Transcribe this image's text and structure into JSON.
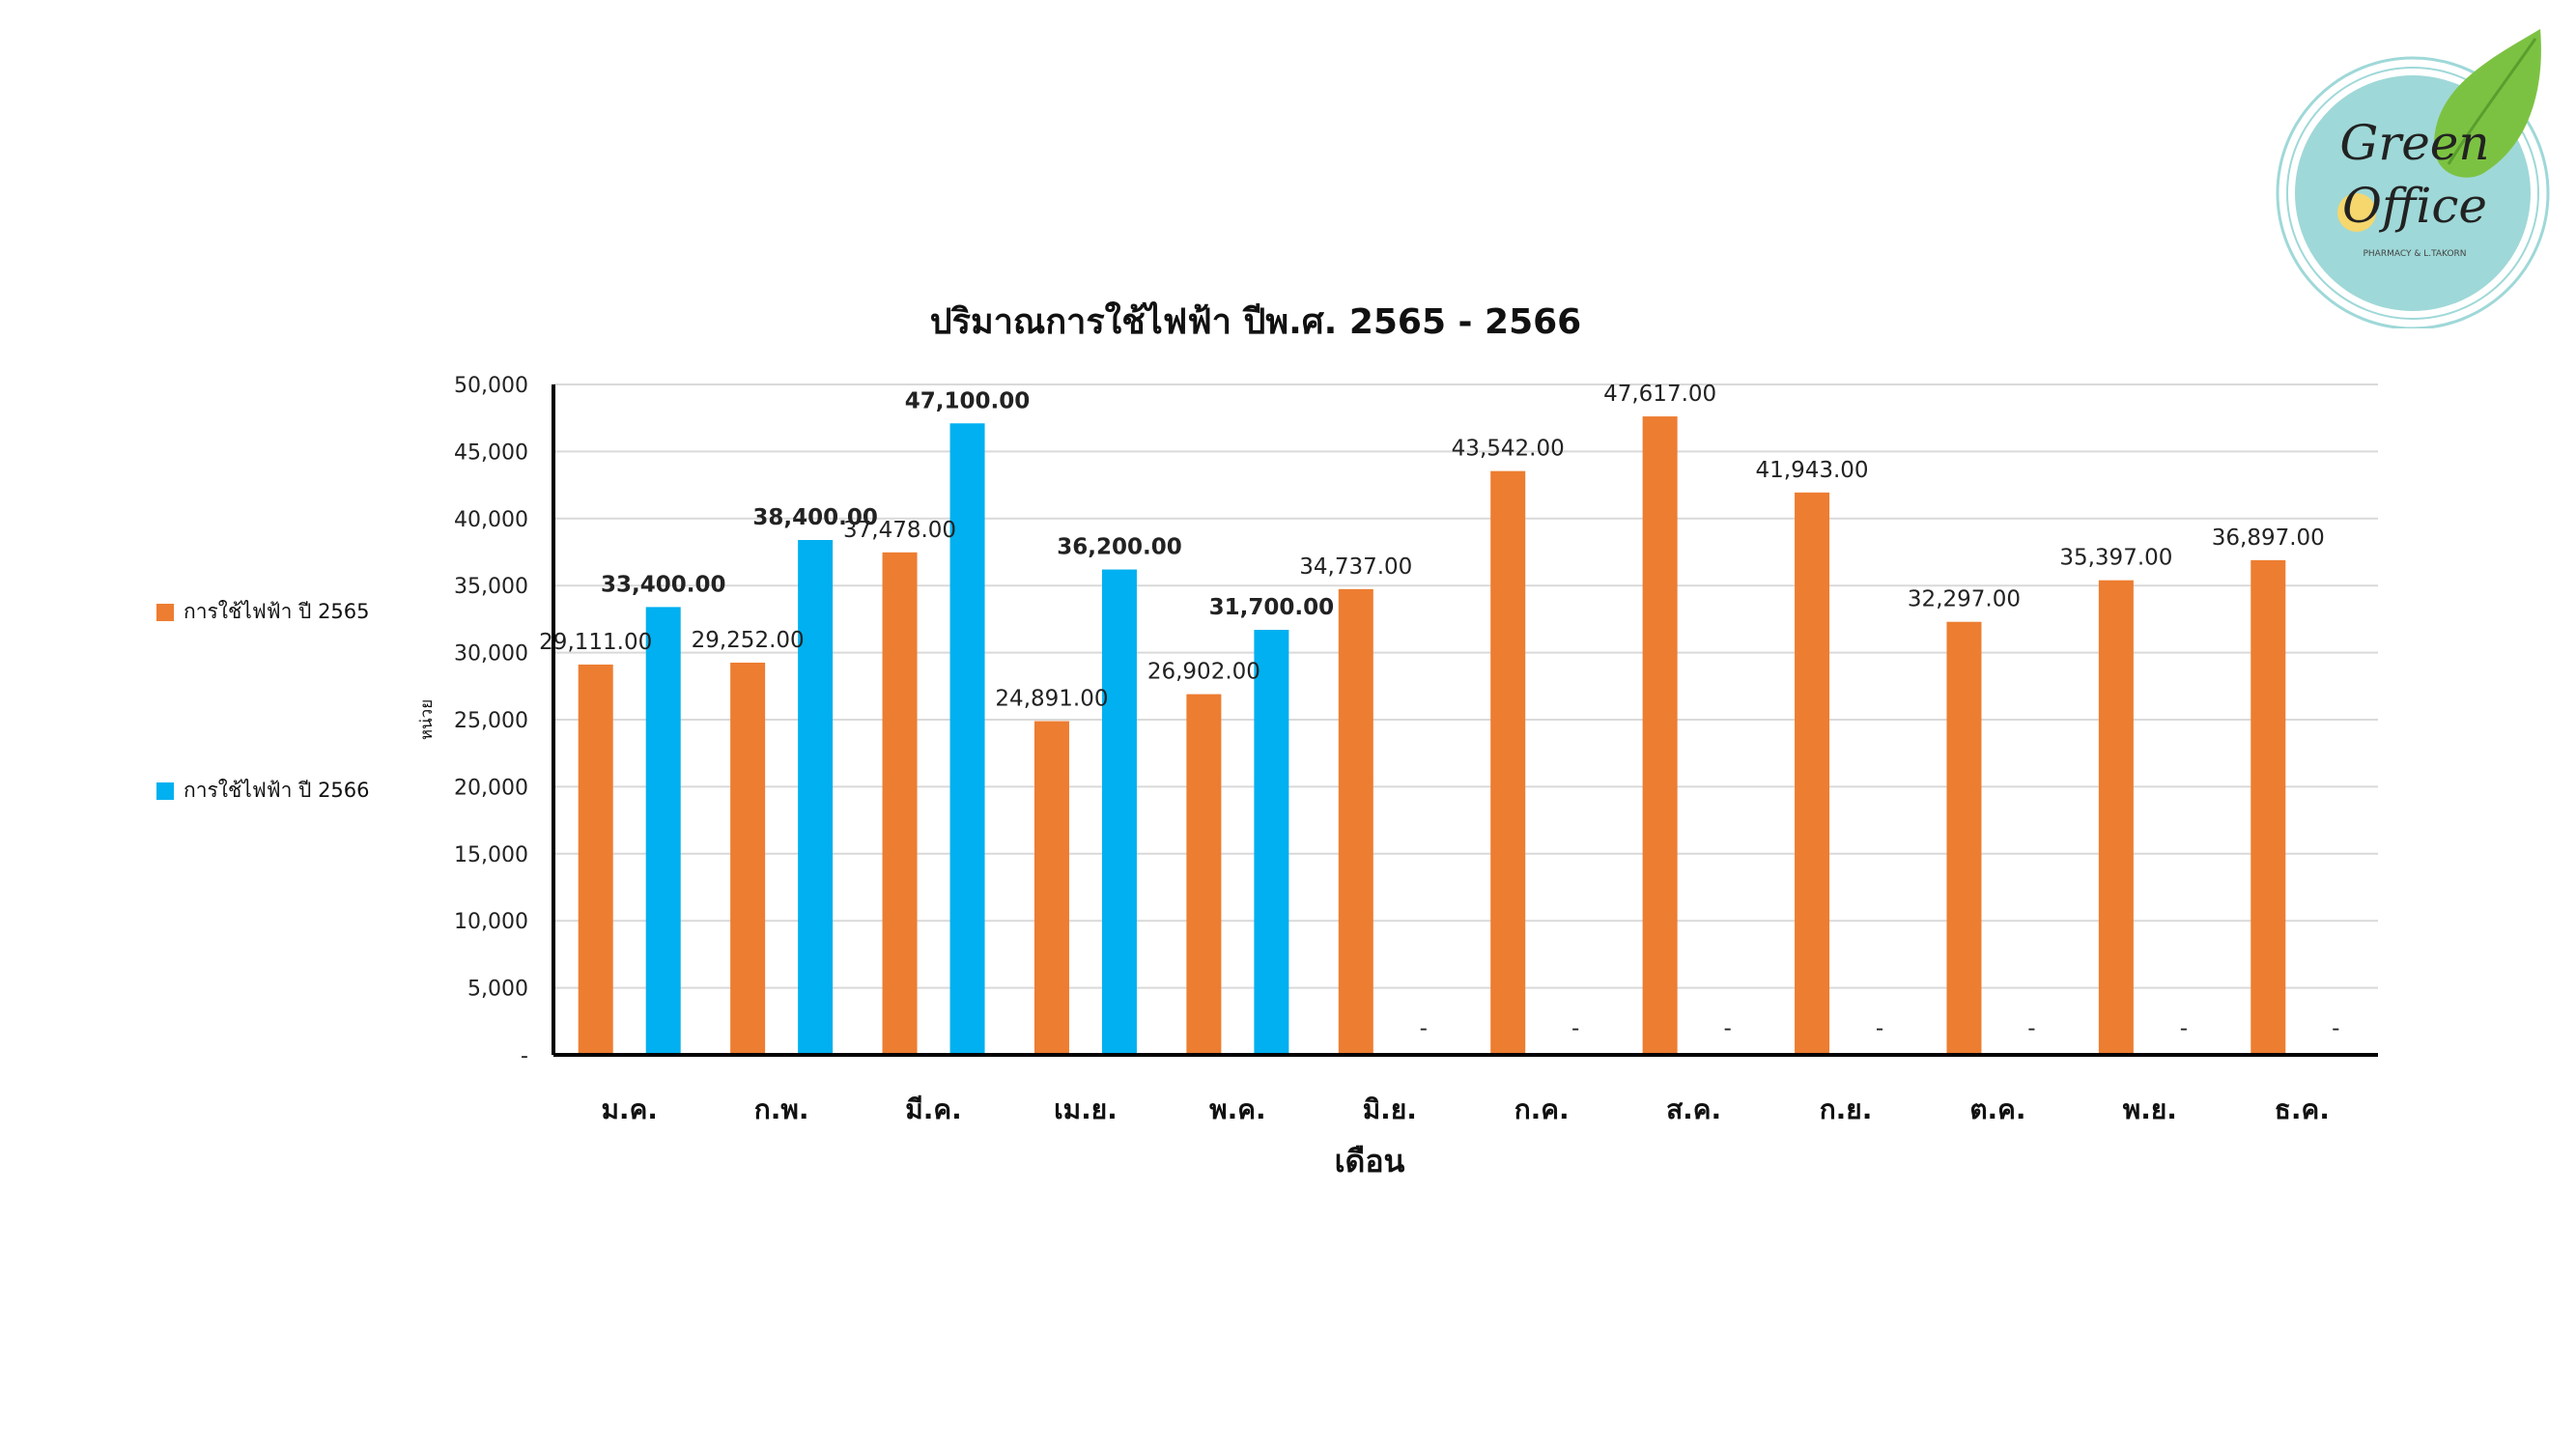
{
  "chart_data": {
    "type": "bar",
    "title": "ปริมาณการใช้ไฟฟ้า ปีพ.ศ. 2565 - 2566",
    "xlabel": "เดือน",
    "ylabel": "หน่วย",
    "ylim": [
      0,
      50000
    ],
    "yticks": [
      "-",
      "5,000",
      "10,000",
      "15,000",
      "20,000",
      "25,000",
      "30,000",
      "35,000",
      "40,000",
      "45,000",
      "50,000"
    ],
    "grid": true,
    "legend_position": "left",
    "categories": [
      "ม.ค.",
      "ก.พ.",
      "มี.ค.",
      "เม.ย.",
      "พ.ค.",
      "มิ.ย.",
      "ก.ค.",
      "ส.ค.",
      "ก.ย.",
      "ต.ค.",
      "พ.ย.",
      "ธ.ค."
    ],
    "series": [
      {
        "name": "การใช้ไฟฟ้า ปี 2565",
        "color": "#ED7D31",
        "values": [
          29111,
          29252,
          37478,
          24891,
          26902,
          34737,
          43542,
          47617,
          41943,
          32297,
          35397,
          36897
        ],
        "labels": [
          "29,111.00",
          "29,252.00",
          "37,478.00",
          "24,891.00",
          "26,902.00",
          "34,737.00",
          "43,542.00",
          "47,617.00",
          "41,943.00",
          "32,297.00",
          "35,397.00",
          "36,897.00"
        ]
      },
      {
        "name": "การใช้ไฟฟ้า ปี 2566",
        "color": "#00B0F0",
        "values": [
          33400,
          38400,
          47100,
          36200,
          31700,
          0,
          0,
          0,
          0,
          0,
          0,
          0
        ],
        "labels": [
          "33,400.00",
          "38,400.00",
          "47,100.00",
          "36,200.00",
          "31,700.00",
          "-",
          "-",
          "-",
          "-",
          "-",
          "-",
          "-"
        ]
      }
    ]
  },
  "logo": {
    "line1": "Green",
    "line2": "Office",
    "subtitle": "PHARMACY & L.TAKORN",
    "ring_color": "#9FD8D8",
    "leaf_color": "#7CC242"
  }
}
